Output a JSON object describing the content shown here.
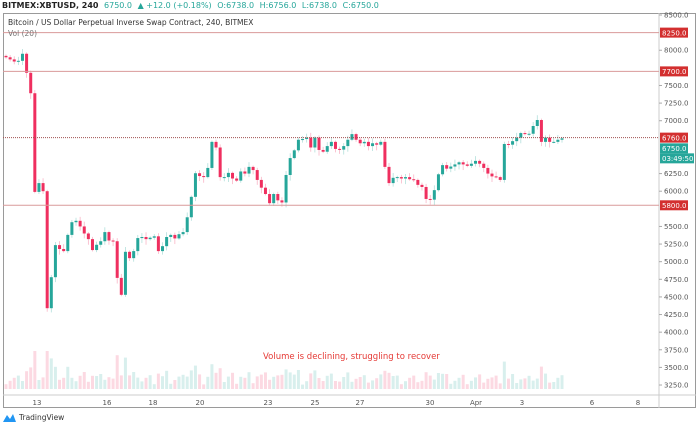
{
  "header": {
    "symbol": "BITMEX:XBTUSD, 240",
    "last": "6750.0",
    "change": "▲ +12.0 (+0.18%)",
    "open": "O:6738.0",
    "high": "H:6756.0",
    "low": "L:6738.0",
    "close": "C:6750.0"
  },
  "legend": {
    "title": "Bitcoin / US Dollar Perpetual Inverse Swap Contract, 240, BITMEX",
    "volume": "Vol (20)"
  },
  "annotation": "Volume is declining, struggling to recover",
  "branding": "TradingView",
  "colors": {
    "up": "#26a69a",
    "down": "#ef2f5f",
    "level_line": "#d99a9a",
    "level_label": "#d32f2f",
    "annotation": "#e53935"
  },
  "chart_data": {
    "type": "candlestick",
    "price_axis": {
      "min": 3250,
      "max": 8500,
      "ticks": [
        "8500.0",
        "8000.0",
        "7500.0",
        "7250.0",
        "7000.0",
        "6250.0",
        "6000.0",
        "5500.0",
        "5250.0",
        "5000.0",
        "4750.0",
        "4500.0",
        "4250.0",
        "4000.0",
        "3750.0",
        "3500.0",
        "3250.0"
      ]
    },
    "time_axis": {
      "ticks": [
        "13",
        "16",
        "18",
        "20",
        "23",
        "25",
        "27",
        "30",
        "Apr",
        "3",
        "6",
        "8"
      ]
    },
    "levels": [
      {
        "price": 8250,
        "label": "8250.0"
      },
      {
        "price": 7700,
        "label": "7700.0"
      },
      {
        "price": 6760,
        "label": "6760.0"
      },
      {
        "price": 5800,
        "label": "5800.0"
      }
    ],
    "last_price_label": "6750.0",
    "countdown": "03:49:50",
    "first_open": 7920,
    "closes": [
      7900,
      7870,
      7840,
      7850,
      7950,
      7680,
      7390,
      5990,
      6115,
      6000,
      4340,
      4780,
      5235,
      5180,
      5150,
      5380,
      5560,
      5580,
      5500,
      5400,
      5320,
      5165,
      5240,
      5290,
      5420,
      5300,
      5290,
      4770,
      4530,
      5140,
      5050,
      5150,
      5335,
      5350,
      5320,
      5340,
      5360,
      5150,
      5220,
      5350,
      5380,
      5330,
      5390,
      5420,
      5630,
      5920,
      6255,
      6215,
      6200,
      6330,
      6700,
      6620,
      6200,
      6200,
      6260,
      6180,
      6150,
      6280,
      6250,
      6345,
      6300,
      6160,
      6050,
      5960,
      5830,
      5960,
      5870,
      5840,
      6230,
      6470,
      6580,
      6730,
      6740,
      6760,
      6620,
      6760,
      6585,
      6560,
      6640,
      6700,
      6600,
      6590,
      6640,
      6730,
      6810,
      6730,
      6680,
      6700,
      6640,
      6680,
      6660,
      6700,
      6345,
      6115,
      6190,
      6200,
      6180,
      6200,
      6170,
      6160,
      6090,
      6060,
      5890,
      5880,
      6015,
      6240,
      6370,
      6320,
      6350,
      6380,
      6410,
      6380,
      6360,
      6390,
      6430,
      6390,
      6330,
      6250,
      6210,
      6200,
      6160,
      6670,
      6660,
      6710,
      6760,
      6825,
      6810,
      6815,
      6925,
      7010,
      6700,
      6760,
      6700,
      6700,
      6730,
      6750
    ]
  }
}
